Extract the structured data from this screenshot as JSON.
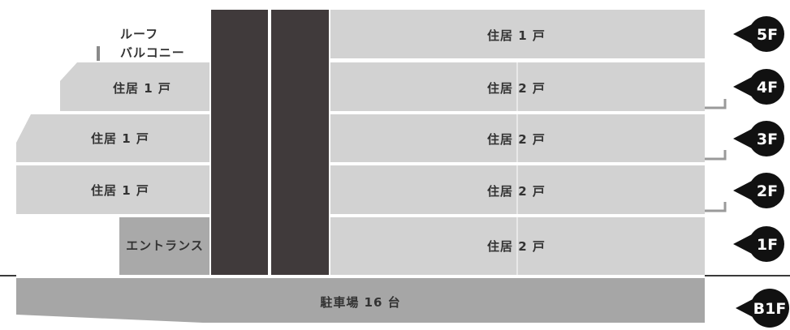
{
  "colors": {
    "unit": "#d2d2d2",
    "core": "#403a3b",
    "entrance": "#a9a9a9",
    "parking": "#a6a6a6",
    "ground_line": "#3a3a3a",
    "marker": "#111111",
    "bracket": "#9a9a9a"
  },
  "roof_balcony": {
    "line1": "ルーフ",
    "line2": "バルコニー"
  },
  "left_units": [
    {
      "floor": "4F",
      "label": "住居 1 戸"
    },
    {
      "floor": "3F",
      "label": "住居 1 戸"
    },
    {
      "floor": "2F",
      "label": "住居 1 戸"
    }
  ],
  "entrance": {
    "label": "エントランス"
  },
  "right_units": [
    {
      "floor": "5F",
      "label": "住居 1 戸"
    },
    {
      "floor": "4F",
      "label": "住居 2 戸"
    },
    {
      "floor": "3F",
      "label": "住居 2 戸"
    },
    {
      "floor": "2F",
      "label": "住居 2 戸"
    },
    {
      "floor": "1F",
      "label": "住居 2 戸"
    }
  ],
  "parking": {
    "label": "駐車場 16 台"
  },
  "floor_markers": [
    "5F",
    "4F",
    "3F",
    "2F",
    "1F",
    "B1F"
  ]
}
